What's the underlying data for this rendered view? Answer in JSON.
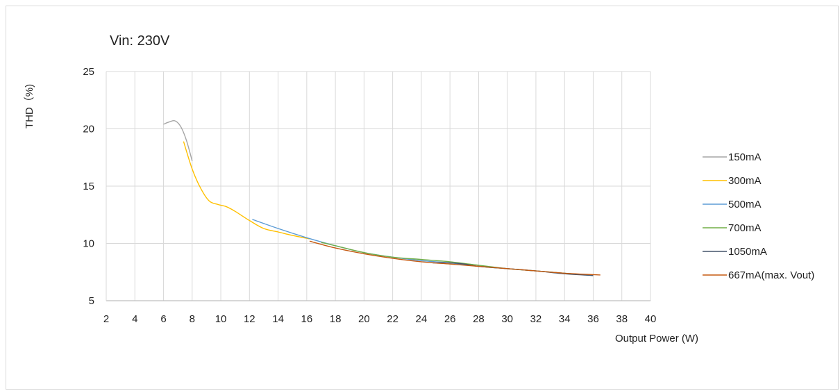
{
  "chart_data": {
    "type": "line",
    "title": "Vin: 230V",
    "xlabel": "Output Power (W)",
    "ylabel": "THD（%)",
    "xlim": [
      2,
      40
    ],
    "ylim": [
      5,
      25
    ],
    "x_ticks": [
      2,
      4,
      6,
      8,
      10,
      12,
      14,
      16,
      18,
      20,
      22,
      24,
      26,
      28,
      30,
      32,
      34,
      36,
      38,
      40
    ],
    "y_ticks": [
      5,
      10,
      15,
      20,
      25
    ],
    "grid": true,
    "legend": "right",
    "series": [
      {
        "name": "150mA",
        "color": "#a5a5a5",
        "x": [
          6.0,
          6.4,
          6.8,
          7.2,
          7.6,
          8.0
        ],
        "y": [
          20.4,
          20.6,
          20.7,
          20.2,
          19.0,
          17.2
        ]
      },
      {
        "name": "300mA",
        "color": "#ffc000",
        "x": [
          7.4,
          8.0,
          8.6,
          9.2,
          9.8,
          10.4,
          11.0,
          12.0,
          13.0,
          14.0,
          15.0,
          16.2
        ],
        "y": [
          18.9,
          16.5,
          14.8,
          13.7,
          13.4,
          13.2,
          12.8,
          12.0,
          11.3,
          11.0,
          10.7,
          10.4
        ]
      },
      {
        "name": "500mA",
        "color": "#5b9bd5",
        "x": [
          12.2,
          14.0,
          16.0,
          18.0,
          20.0,
          22.0,
          24.0,
          26.0,
          28.0,
          30.0,
          32.0,
          34.0,
          36.0
        ],
        "y": [
          12.1,
          11.3,
          10.5,
          9.8,
          9.2,
          8.8,
          8.5,
          8.3,
          8.0,
          7.8,
          7.6,
          7.4,
          7.2
        ]
      },
      {
        "name": "700mA",
        "color": "#70ad47",
        "x": [
          17.0,
          18.0,
          20.0,
          22.0,
          24.0,
          26.0,
          28.0,
          30.0,
          32.0,
          34.0,
          36.0
        ],
        "y": [
          10.1,
          9.8,
          9.2,
          8.8,
          8.6,
          8.4,
          8.1,
          7.8,
          7.6,
          7.4,
          7.2
        ]
      },
      {
        "name": "1050mA",
        "color": "#44546a",
        "x": [
          24.8,
          26.0,
          27.0,
          28.0,
          30.0,
          32.0,
          34.0,
          36.0
        ],
        "y": [
          8.3,
          8.3,
          8.2,
          8.0,
          7.8,
          7.6,
          7.35,
          7.2
        ]
      },
      {
        "name": "667mA(max. Vout)",
        "color": "#c55a11",
        "x": [
          16.2,
          18.0,
          20.0,
          22.0,
          24.0,
          26.0,
          28.0,
          30.0,
          32.0,
          34.0,
          36.5
        ],
        "y": [
          10.2,
          9.6,
          9.1,
          8.7,
          8.4,
          8.2,
          8.0,
          7.8,
          7.6,
          7.4,
          7.25
        ]
      }
    ]
  }
}
